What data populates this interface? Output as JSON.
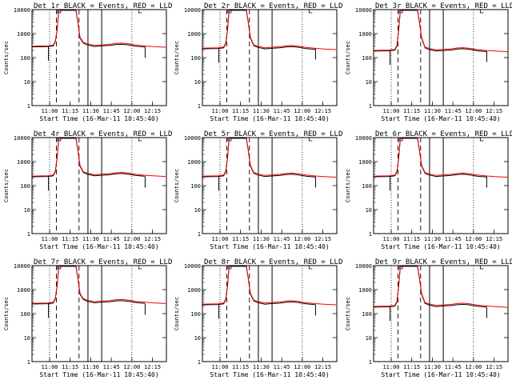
{
  "chart_data": [
    {
      "type": "line",
      "title": "Det 1r BLACK = Events, RED = LLD",
      "xlabel": "Start Time (16-Mar-11 10:45:40)",
      "ylabel": "Counts/sec",
      "yscale": "log",
      "ylim": [
        1,
        10000
      ],
      "x_ticks": [
        "11:00",
        "11:15",
        "11:30",
        "11:45",
        "12:00",
        "12:15"
      ],
      "y_ticks": [
        "1",
        "10",
        "100",
        "1000",
        "10000"
      ],
      "baseline_before": 300,
      "baseline_after": 340,
      "peak": 10000,
      "series": [
        {
          "color": "#000000"
        },
        {
          "color": "#ff0000"
        }
      ]
    },
    {
      "type": "line",
      "title": "Det 2r BLACK = Events, RED = LLD",
      "xlabel": "Start Time (16-Mar-11 10:45:40)",
      "ylabel": "Counts/sec",
      "yscale": "log",
      "ylim": [
        1,
        10000
      ],
      "x_ticks": [
        "11:00",
        "11:15",
        "11:30",
        "11:45",
        "12:00",
        "12:15"
      ],
      "y_ticks": [
        "1",
        "10",
        "100",
        "1000",
        "10000"
      ],
      "baseline_before": 250,
      "baseline_after": 270,
      "peak": 10000,
      "series": [
        {
          "color": "#000000"
        },
        {
          "color": "#ff0000"
        }
      ]
    },
    {
      "type": "line",
      "title": "Det 3r BLACK = Events, RED = LLD",
      "xlabel": "Start Time (16-Mar-11 10:45:40)",
      "ylabel": "Counts/sec",
      "yscale": "log",
      "ylim": [
        1,
        10000
      ],
      "x_ticks": [
        "11:00",
        "11:15",
        "11:30",
        "11:45",
        "12:00",
        "12:15"
      ],
      "y_ticks": [
        "1",
        "10",
        "100",
        "1000",
        "10000"
      ],
      "baseline_before": 200,
      "baseline_after": 220,
      "peak": 10000,
      "series": [
        {
          "color": "#000000"
        },
        {
          "color": "#ff0000"
        }
      ]
    },
    {
      "type": "line",
      "title": "Det 4r BLACK = Events, RED = LLD",
      "xlabel": "Start Time (16-Mar-11 10:45:40)",
      "ylabel": "Counts/sec",
      "yscale": "log",
      "ylim": [
        1,
        10000
      ],
      "x_ticks": [
        "11:00",
        "11:15",
        "11:30",
        "11:45",
        "12:00",
        "12:15"
      ],
      "y_ticks": [
        "1",
        "10",
        "100",
        "1000",
        "10000"
      ],
      "baseline_before": 250,
      "baseline_after": 300,
      "peak": 10000,
      "series": [
        {
          "color": "#000000"
        },
        {
          "color": "#ff0000"
        }
      ]
    },
    {
      "type": "line",
      "title": "Det 5r BLACK = Events, RED = LLD",
      "xlabel": "Start Time (16-Mar-11 10:45:40)",
      "ylabel": "Counts/sec",
      "yscale": "log",
      "ylim": [
        1,
        10000
      ],
      "x_ticks": [
        "11:00",
        "11:15",
        "11:30",
        "11:45",
        "12:00",
        "12:15"
      ],
      "y_ticks": [
        "1",
        "10",
        "100",
        "1000",
        "10000"
      ],
      "baseline_before": 250,
      "baseline_after": 280,
      "peak": 10000,
      "series": [
        {
          "color": "#000000"
        },
        {
          "color": "#ff0000"
        }
      ]
    },
    {
      "type": "line",
      "title": "Det 6r BLACK = Events, RED = LLD",
      "xlabel": "Start Time (16-Mar-11 10:45:40)",
      "ylabel": "Counts/sec",
      "yscale": "log",
      "ylim": [
        1,
        10000
      ],
      "x_ticks": [
        "11:00",
        "11:15",
        "11:30",
        "11:45",
        "12:00",
        "12:15"
      ],
      "y_ticks": [
        "1",
        "10",
        "100",
        "1000",
        "10000"
      ],
      "baseline_before": 250,
      "baseline_after": 280,
      "peak": 10000,
      "series": [
        {
          "color": "#000000"
        },
        {
          "color": "#ff0000"
        }
      ]
    },
    {
      "type": "line",
      "title": "Det 7r BLACK = Events, RED = LLD",
      "xlabel": "Start Time (16-Mar-11 10:45:40)",
      "ylabel": "Counts/sec",
      "yscale": "log",
      "ylim": [
        1,
        10000
      ],
      "x_ticks": [
        "11:00",
        "11:15",
        "11:30",
        "11:45",
        "12:00",
        "12:15"
      ],
      "y_ticks": [
        "1",
        "10",
        "100",
        "1000",
        "10000"
      ],
      "baseline_before": 270,
      "baseline_after": 330,
      "peak": 10000,
      "series": [
        {
          "color": "#000000"
        },
        {
          "color": "#ff0000"
        }
      ]
    },
    {
      "type": "line",
      "title": "Det 8r BLACK = Events, RED = LLD",
      "xlabel": "Start Time (16-Mar-11 10:45:40)",
      "ylabel": "Counts/sec",
      "yscale": "log",
      "ylim": [
        1,
        10000
      ],
      "x_ticks": [
        "11:00",
        "11:15",
        "11:30",
        "11:45",
        "12:00",
        "12:15"
      ],
      "y_ticks": [
        "1",
        "10",
        "100",
        "1000",
        "10000"
      ],
      "baseline_before": 250,
      "baseline_after": 290,
      "peak": 10000,
      "series": [
        {
          "color": "#000000"
        },
        {
          "color": "#ff0000"
        }
      ]
    },
    {
      "type": "line",
      "title": "Det 9r BLACK = Events, RED = LLD",
      "xlabel": "Start Time (16-Mar-11 10:45:40)",
      "ylabel": "Counts/sec",
      "yscale": "log",
      "ylim": [
        1,
        10000
      ],
      "x_ticks": [
        "11:00",
        "11:15",
        "11:30",
        "11:45",
        "12:00",
        "12:15"
      ],
      "y_ticks": [
        "1",
        "10",
        "100",
        "1000",
        "10000"
      ],
      "baseline_before": 200,
      "baseline_after": 230,
      "peak": 10000,
      "series": [
        {
          "color": "#000000"
        },
        {
          "color": "#ff0000"
        }
      ]
    }
  ]
}
